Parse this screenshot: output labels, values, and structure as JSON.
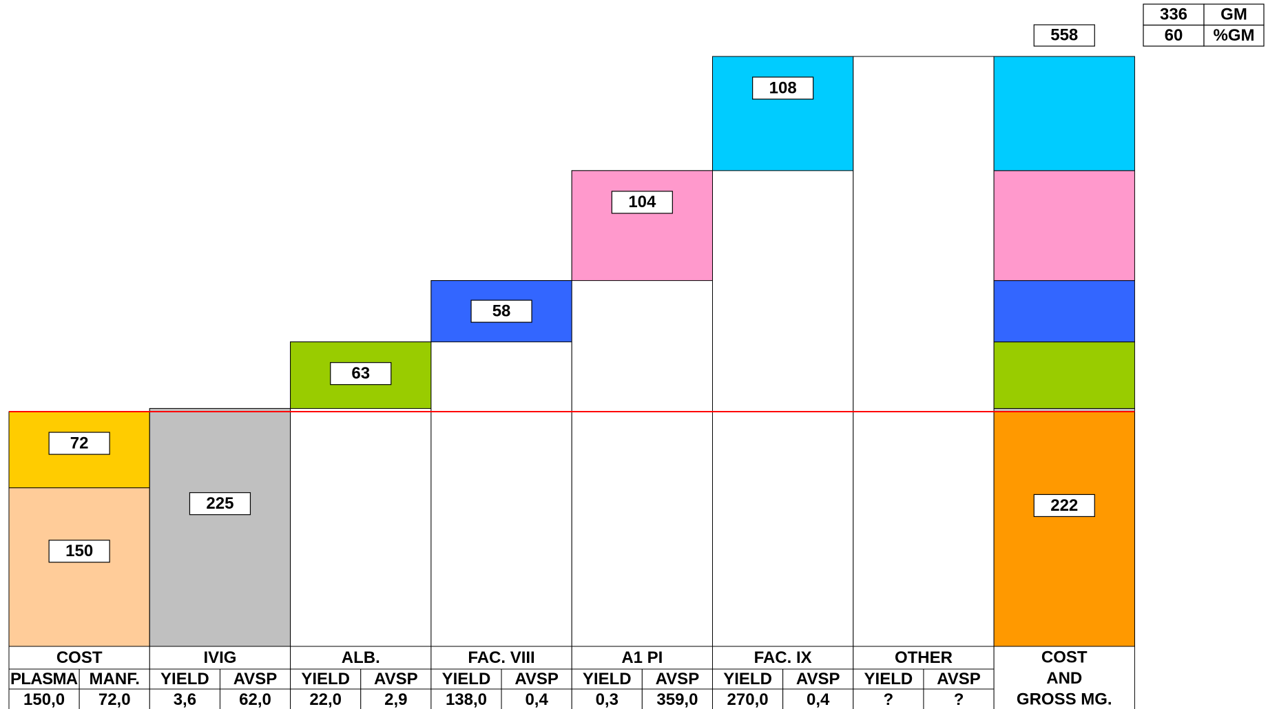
{
  "chart_data": {
    "type": "waterfall",
    "cost": {
      "name": "COST",
      "segments": [
        {
          "value": 150,
          "color": "#ffcc99"
        },
        {
          "value": 72,
          "color": "#ffcc00"
        }
      ],
      "cells": [
        [
          "PLASMA",
          "150,0"
        ],
        [
          "MANF.",
          "72,0"
        ]
      ]
    },
    "products": [
      {
        "name": "IVIG",
        "value": 225,
        "color": "#c0c0c0",
        "cells": [
          [
            "YIELD",
            "3,6"
          ],
          [
            "AVSP",
            "62,0"
          ]
        ]
      },
      {
        "name": "ALB.",
        "value": 63,
        "color": "#99cc00",
        "cells": [
          [
            "YIELD",
            "22,0"
          ],
          [
            "AVSP",
            "2,9"
          ]
        ]
      },
      {
        "name": "FAC. VIII",
        "value": 58,
        "color": "#3366ff",
        "cells": [
          [
            "YIELD",
            "138,0"
          ],
          [
            "AVSP",
            "0,4"
          ]
        ]
      },
      {
        "name": "A1 PI",
        "value": 104,
        "color": "#ff99cc",
        "cells": [
          [
            "YIELD",
            "0,3"
          ],
          [
            "AVSP",
            "359,0"
          ]
        ]
      },
      {
        "name": "FAC. IX",
        "value": 108,
        "color": "#00ccff",
        "cells": [
          [
            "YIELD",
            "270,0"
          ],
          [
            "AVSP",
            "0,4"
          ]
        ]
      },
      {
        "name": "OTHER",
        "value": null,
        "color": "#ffffff",
        "cells": [
          [
            "YIELD",
            "?"
          ],
          [
            "AVSP",
            "?"
          ]
        ]
      }
    ],
    "total": {
      "name": [
        "COST",
        "AND",
        "GROSS MG."
      ],
      "revenue": 558,
      "cost": 222,
      "cost_color": "#ff9900"
    },
    "cost_line_color": "#ff0000",
    "gm": 336,
    "gm_label": "GM",
    "gm_pct": 60,
    "gm_pct_label": "%GM"
  }
}
